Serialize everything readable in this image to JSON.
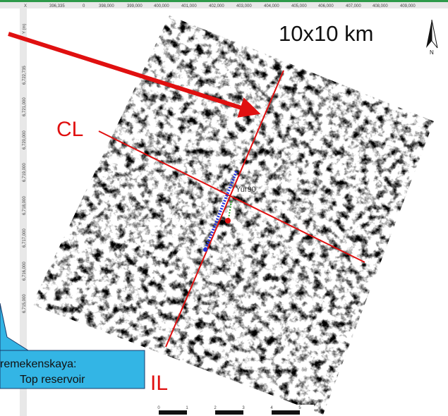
{
  "top_ruler": {
    "axis_label": "X",
    "ticks": [
      "396,335",
      "0",
      "398,000",
      "399,000",
      "400,000",
      "401,000",
      "402,000",
      "403,000",
      "404,000",
      "405,000",
      "406,000",
      "407,000",
      "408,000",
      "409,000"
    ]
  },
  "left_ruler": {
    "axis_label": "Y (m)",
    "ticks": [
      "6,722,735",
      "6,721,000",
      "6,720,000",
      "6,719,000",
      "6,718,000",
      "6,717,000",
      "6,716,000",
      "6,715,000"
    ]
  },
  "map": {
    "size_label": "10x10 km",
    "north_label": "N",
    "crossline_label": "CL",
    "inline_label": "IL",
    "well_label": "Yur90",
    "callout": [
      "remekenskaya:",
      "Top reservoir"
    ],
    "scale_bar_ticks": [
      "0",
      "1",
      "2",
      "3",
      "4",
      "5"
    ]
  }
}
